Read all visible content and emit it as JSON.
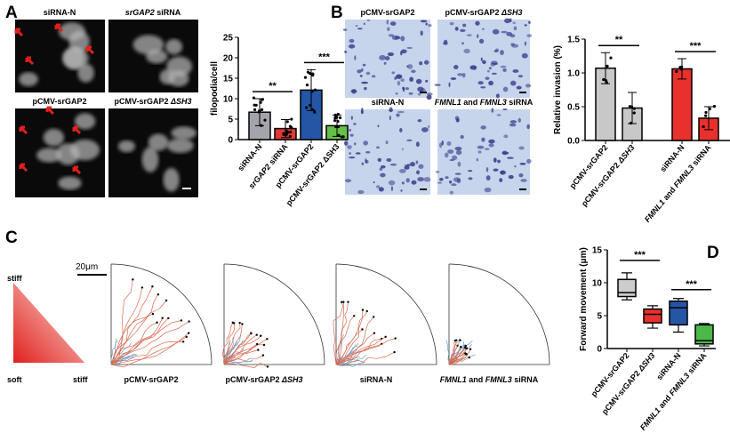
{
  "panels": {
    "A": {
      "letter": "A",
      "images": [
        {
          "label": [
            {
              "t": "siRNA-N",
              "i": false
            }
          ]
        },
        {
          "label": [
            {
              "t": "srGAP2",
              "i": true
            },
            {
              "t": " siRNA",
              "i": false
            }
          ]
        },
        {
          "label": [
            {
              "t": "pCMV-srGAP2",
              "i": false
            }
          ]
        },
        {
          "label": [
            {
              "t": "pCMV-srGAP2 ",
              "i": false
            },
            {
              "t": "ΔSH3",
              "i": true
            }
          ]
        }
      ]
    },
    "B": {
      "letter": "B",
      "images": [
        {
          "label": [
            {
              "t": "pCMV-srGAP2",
              "i": false
            }
          ]
        },
        {
          "label": [
            {
              "t": "pCMV-srGAP2 ",
              "i": false
            },
            {
              "t": "ΔSH3",
              "i": true
            }
          ]
        },
        {
          "label": [
            {
              "t": "siRNA-N",
              "i": false
            }
          ]
        },
        {
          "label": [
            {
              "t": "FMNL1",
              "i": true
            },
            {
              "t": " and ",
              "i": false
            },
            {
              "t": "FMNL3",
              "i": true
            },
            {
              "t": " siRNA",
              "i": false
            }
          ]
        }
      ]
    },
    "C": {
      "letter": "C",
      "stiff_top": "stiff",
      "soft": "soft",
      "stiff_right": "stiff",
      "scale_bar": "20μm",
      "plots": [
        {
          "label": [
            {
              "t": "pCMV-srGAP2",
              "i": false
            }
          ]
        },
        {
          "label": [
            {
              "t": "pCMV-srGAP2 ",
              "i": false
            },
            {
              "t": "ΔSH3",
              "i": true
            }
          ]
        },
        {
          "label": [
            {
              "t": "siRNA-N",
              "i": false
            }
          ]
        },
        {
          "label": [
            {
              "t": "FMNL1",
              "i": true
            },
            {
              "t": " and ",
              "i": false
            },
            {
              "t": "FMNL3",
              "i": true
            },
            {
              "t": " siRNA",
              "i": false
            }
          ]
        }
      ]
    },
    "D": {
      "letter": "D"
    }
  },
  "chart_data": [
    {
      "id": "A",
      "type": "bar",
      "ylabel": "filopodia/cell",
      "ylim": [
        0,
        25
      ],
      "yticks": [
        0,
        5,
        10,
        15,
        20,
        25
      ],
      "categories": [
        [
          {
            "t": "siRNA-N",
            "i": false
          }
        ],
        [
          {
            "t": "srGAP2",
            "i": true
          },
          {
            "t": " siRNA",
            "i": false
          }
        ],
        [
          {
            "t": "pCMV-srGAP2",
            "i": false
          }
        ],
        [
          {
            "t": "pCMV-srGAP2 ",
            "i": false
          },
          {
            "t": "ΔSH3",
            "i": false
          }
        ]
      ],
      "values": [
        6.7,
        2.7,
        12.1,
        3.4
      ],
      "sd": [
        3.3,
        2.2,
        5.0,
        2.6
      ],
      "colors": [
        "#a4a4ac",
        "#e23a36",
        "#2456a6",
        "#66c048"
      ],
      "significance": [
        {
          "from": 0,
          "to": 1,
          "label": "**"
        },
        {
          "from": 2,
          "to": 3,
          "label": "***"
        }
      ]
    },
    {
      "id": "B",
      "type": "bar",
      "ylabel": "Relative invasion (%)",
      "ylim": [
        0,
        1.5
      ],
      "yticks": [
        0.0,
        0.5,
        1.0,
        1.5
      ],
      "categories": [
        [
          {
            "t": "pCMV-srGAP2",
            "i": false
          }
        ],
        [
          {
            "t": "pCMV-srGAP2 ",
            "i": false
          },
          {
            "t": "ΔSH3",
            "i": true
          }
        ],
        [
          {
            "t": "siRNA-N",
            "i": false
          }
        ],
        [
          {
            "t": "FMNL1",
            "i": true
          },
          {
            "t": " and ",
            "i": false
          },
          {
            "t": "FMNL3",
            "i": true
          },
          {
            "t": " siRNA",
            "i": false
          }
        ]
      ],
      "values": [
        1.07,
        0.48,
        1.06,
        0.33
      ],
      "sd": [
        0.23,
        0.23,
        0.15,
        0.17
      ],
      "colors": [
        "#c8c8c8",
        "#c8c8c8",
        "#e8302c",
        "#e8302c"
      ],
      "significance": [
        {
          "from": 0,
          "to": 1,
          "label": "**"
        },
        {
          "from": 2,
          "to": 3,
          "label": "***"
        }
      ]
    },
    {
      "id": "D",
      "type": "box",
      "ylabel": "Forward movement (μm)",
      "ylim": [
        0,
        15
      ],
      "yticks": [
        0,
        5,
        10,
        15
      ],
      "categories": [
        [
          {
            "t": "pCMV-srGAP2",
            "i": false
          }
        ],
        [
          {
            "t": "pCMV-srGAP2 ",
            "i": false
          },
          {
            "t": "ΔSH3",
            "i": true
          }
        ],
        [
          {
            "t": "siRNA-N",
            "i": false
          }
        ],
        [
          {
            "t": "FMNL1",
            "i": true
          },
          {
            "t": " and ",
            "i": false
          },
          {
            "t": "FMNL3",
            "i": true
          },
          {
            "t": " siRNA",
            "i": false
          }
        ]
      ],
      "boxes": [
        {
          "min": 7.4,
          "q1": 7.9,
          "median": 8.5,
          "q3": 10.5,
          "max": 11.5
        },
        {
          "min": 3.1,
          "q1": 3.9,
          "median": 5.2,
          "q3": 6.0,
          "max": 6.5
        },
        {
          "min": 2.5,
          "q1": 3.6,
          "median": 6.2,
          "q3": 7.2,
          "max": 7.6
        },
        {
          "min": 0.4,
          "q1": 0.7,
          "median": 1.2,
          "q3": 3.6,
          "max": 3.8
        }
      ],
      "colors": [
        "#cccccc",
        "#e8302c",
        "#2456a6",
        "#4cb848"
      ],
      "significance": [
        {
          "from": 0,
          "to": 1,
          "label": "***"
        },
        {
          "from": 2,
          "to": 3,
          "label": "***"
        }
      ]
    }
  ]
}
